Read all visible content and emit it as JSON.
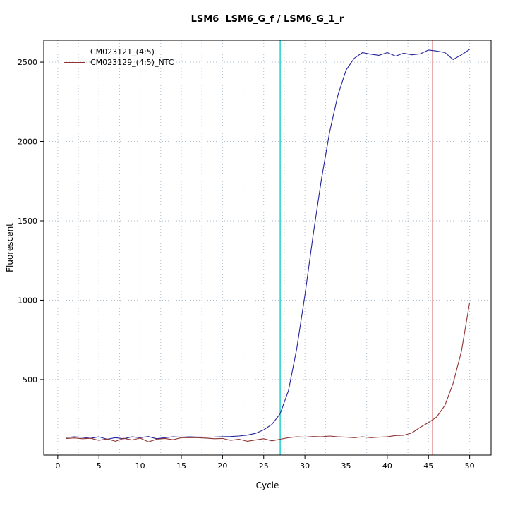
{
  "chart_data": {
    "type": "line",
    "title": "LSM6  LSM6_G_f / LSM6_G_1_r",
    "xlabel": "Cycle",
    "ylabel": "Fluorescent",
    "xlim": [
      -1.7,
      52.6
    ],
    "ylim": [
      24,
      2638
    ],
    "x_ticks": [
      0,
      5,
      10,
      15,
      20,
      25,
      30,
      35,
      40,
      45,
      50
    ],
    "y_ticks": [
      500,
      1000,
      1500,
      2000,
      2500
    ],
    "grid": {
      "x_start": 0,
      "x_end": 50,
      "x_step": 2.5,
      "y_start": 500,
      "y_end": 2500,
      "y_step": 500,
      "color": "#aebfce",
      "style": "dotted"
    },
    "x": [
      1,
      2,
      3,
      4,
      5,
      6,
      7,
      8,
      9,
      10,
      11,
      12,
      13,
      14,
      15,
      16,
      17,
      18,
      19,
      20,
      21,
      22,
      23,
      24,
      25,
      26,
      27,
      28,
      29,
      30,
      31,
      32,
      33,
      34,
      35,
      36,
      37,
      38,
      39,
      40,
      41,
      42,
      43,
      44,
      45,
      46,
      47,
      48,
      49,
      50
    ],
    "series": [
      {
        "name": "CM023121_(4:5)",
        "color": "#23239b",
        "values": [
          135,
          139,
          136,
          130,
          139,
          124,
          134,
          127,
          139,
          134,
          141,
          127,
          134,
          139,
          137,
          139,
          138,
          137,
          138,
          140,
          141,
          144,
          150,
          161,
          183,
          218,
          285,
          430,
          690,
          1030,
          1410,
          1760,
          2060,
          2290,
          2450,
          2525,
          2560,
          2550,
          2543,
          2560,
          2538,
          2556,
          2546,
          2552,
          2576,
          2570,
          2560,
          2516,
          2546,
          2580
        ]
      },
      {
        "name": "CM023129_(4:5)_NTC",
        "color": "#8f3333",
        "values": [
          128,
          132,
          127,
          130,
          117,
          126,
          111,
          130,
          119,
          131,
          107,
          124,
          129,
          121,
          134,
          134,
          134,
          131,
          127,
          129,
          117,
          124,
          111,
          119,
          127,
          114,
          124,
          134,
          139,
          137,
          141,
          139,
          144,
          139,
          137,
          134,
          139,
          134,
          137,
          139,
          147,
          149,
          164,
          199,
          229,
          264,
          338,
          478,
          678,
          985
        ]
      }
    ],
    "vlines": [
      {
        "x": 27,
        "color": "#00c8c8",
        "name": "ct-line-sample"
      },
      {
        "x": 45.5,
        "color": "#d96b6b",
        "name": "ct-line-ntc"
      }
    ],
    "legend": {
      "position": "top-left",
      "entries": [
        "CM023121_(4:5)",
        "CM023129_(4:5)_NTC"
      ]
    }
  }
}
